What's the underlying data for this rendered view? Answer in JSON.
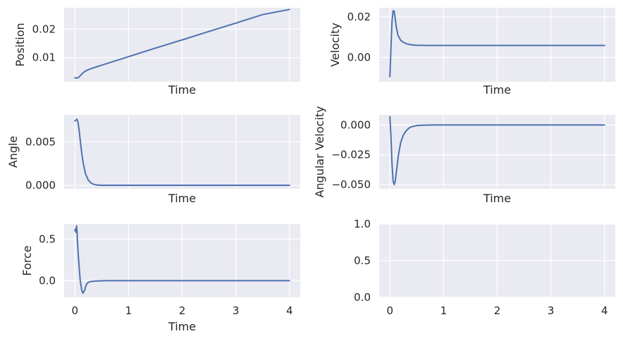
{
  "colors": {
    "background": "#eaeaf2",
    "grid": "#ffffff",
    "line": "#4c72b0",
    "text": "#262626"
  },
  "chart_data": [
    {
      "type": "line",
      "name": "position",
      "xlabel": "Time",
      "ylabel": "Position",
      "xlim": [
        -0.2,
        4.2
      ],
      "ylim": [
        0.0015,
        0.0275
      ],
      "xticks": [],
      "yticks": [
        0.01,
        0.02
      ],
      "yticklabels": [
        "0.01",
        "0.02"
      ],
      "xgrid": [
        0,
        1,
        2,
        3,
        4
      ],
      "x": [
        0.0,
        0.03,
        0.06,
        0.1,
        0.15,
        0.2,
        0.3,
        0.4,
        0.5,
        0.7,
        1.0,
        1.5,
        2.0,
        2.5,
        3.0,
        3.5,
        4.0
      ],
      "y": [
        0.0029,
        0.0028,
        0.0029,
        0.0036,
        0.0046,
        0.0053,
        0.0061,
        0.0067,
        0.0073,
        0.0085,
        0.0103,
        0.0133,
        0.0162,
        0.0192,
        0.0221,
        0.0251,
        0.0269
      ]
    },
    {
      "type": "line",
      "name": "velocity",
      "xlabel": "Time",
      "ylabel": "Velocity",
      "xlim": [
        -0.2,
        4.2
      ],
      "ylim": [
        -0.012,
        0.0245
      ],
      "xticks": [],
      "yticks": [
        0.0,
        0.02
      ],
      "yticklabels": [
        "0.00",
        "0.02"
      ],
      "xgrid": [
        0,
        1,
        2,
        3,
        4
      ],
      "x": [
        0.0,
        0.02,
        0.04,
        0.06,
        0.08,
        0.1,
        0.12,
        0.15,
        0.2,
        0.25,
        0.3,
        0.4,
        0.5,
        0.7,
        1.0,
        2.0,
        3.0,
        4.0
      ],
      "y": [
        -0.0095,
        0.005,
        0.018,
        0.023,
        0.0228,
        0.019,
        0.015,
        0.011,
        0.0085,
        0.0075,
        0.0068,
        0.0062,
        0.006,
        0.0059,
        0.0059,
        0.0059,
        0.0059,
        0.0059
      ]
    },
    {
      "type": "line",
      "name": "angle",
      "xlabel": "Time",
      "ylabel": "Angle",
      "xlim": [
        -0.2,
        4.2
      ],
      "ylim": [
        -0.0004,
        0.0081
      ],
      "xticks": [],
      "yticks": [
        0.0,
        0.005
      ],
      "yticklabels": [
        "0.000",
        "0.005"
      ],
      "xgrid": [
        0,
        1,
        2,
        3,
        4
      ],
      "x": [
        0.0,
        0.02,
        0.04,
        0.06,
        0.08,
        0.1,
        0.13,
        0.16,
        0.2,
        0.25,
        0.3,
        0.35,
        0.4,
        0.5,
        0.6,
        0.8,
        1.0,
        2.0,
        3.0,
        4.0
      ],
      "y": [
        0.0074,
        0.0075,
        0.0076,
        0.0072,
        0.0063,
        0.0052,
        0.0036,
        0.0024,
        0.0013,
        0.0006,
        0.00028,
        0.00012,
        5e-05,
        1e-05,
        0.0,
        0.0,
        0.0,
        0.0,
        0.0,
        0.0
      ]
    },
    {
      "type": "line",
      "name": "angular-velocity",
      "xlabel": "Time",
      "ylabel": "Angular Velocity",
      "xlim": [
        -0.2,
        4.2
      ],
      "ylim": [
        -0.0535,
        0.0085
      ],
      "xticks": [],
      "yticks": [
        -0.05,
        -0.025,
        0.0
      ],
      "yticklabels": [
        "−0.050",
        "−0.025",
        "0.000"
      ],
      "xgrid": [
        0,
        1,
        2,
        3,
        4
      ],
      "x": [
        0.0,
        0.02,
        0.04,
        0.06,
        0.08,
        0.1,
        0.13,
        0.16,
        0.2,
        0.25,
        0.3,
        0.35,
        0.4,
        0.5,
        0.6,
        0.8,
        1.0,
        2.0,
        3.0,
        4.0
      ],
      "y": [
        0.007,
        -0.01,
        -0.033,
        -0.047,
        -0.05,
        -0.047,
        -0.036,
        -0.025,
        -0.015,
        -0.0085,
        -0.005,
        -0.0028,
        -0.0015,
        -0.0005,
        -0.0002,
        0.0,
        0.0,
        0.0,
        0.0,
        0.0
      ]
    },
    {
      "type": "line",
      "name": "force",
      "xlabel": "Time",
      "ylabel": "Force",
      "xlim": [
        -0.2,
        4.2
      ],
      "ylim": [
        -0.2,
        0.68
      ],
      "xticks": [
        0,
        1,
        2,
        3,
        4
      ],
      "xticklabels": [
        "0",
        "1",
        "2",
        "3",
        "4"
      ],
      "yticks": [
        0.0,
        0.5
      ],
      "yticklabels": [
        "0.0",
        "0.5"
      ],
      "xgrid": [
        0,
        1,
        2,
        3,
        4
      ],
      "x": [
        0.0,
        0.01,
        0.02,
        0.03,
        0.04,
        0.05,
        0.07,
        0.1,
        0.13,
        0.15,
        0.18,
        0.2,
        0.23,
        0.27,
        0.3,
        0.4,
        0.5,
        0.6,
        0.8,
        1.0,
        2.0,
        3.0,
        4.0
      ],
      "y": [
        0.6,
        0.62,
        0.58,
        0.66,
        0.6,
        0.45,
        0.25,
        0.0,
        -0.12,
        -0.15,
        -0.12,
        -0.07,
        -0.03,
        -0.015,
        -0.01,
        -0.004,
        -0.002,
        0.0,
        0.0,
        0.0,
        0.0,
        0.0,
        0.0
      ]
    },
    {
      "type": "line",
      "name": "empty",
      "xlabel": "",
      "ylabel": "",
      "xlim": [
        -0.2,
        4.2
      ],
      "ylim": [
        0.0,
        1.0
      ],
      "xticks": [
        0,
        1,
        2,
        3,
        4
      ],
      "xticklabels": [
        "0",
        "1",
        "2",
        "3",
        "4"
      ],
      "yticks": [
        0.0,
        0.5,
        1.0
      ],
      "yticklabels": [
        "0.0",
        "0.5",
        "1.0"
      ],
      "xgrid": [
        0,
        1,
        2,
        3,
        4
      ],
      "x": [],
      "y": []
    }
  ]
}
